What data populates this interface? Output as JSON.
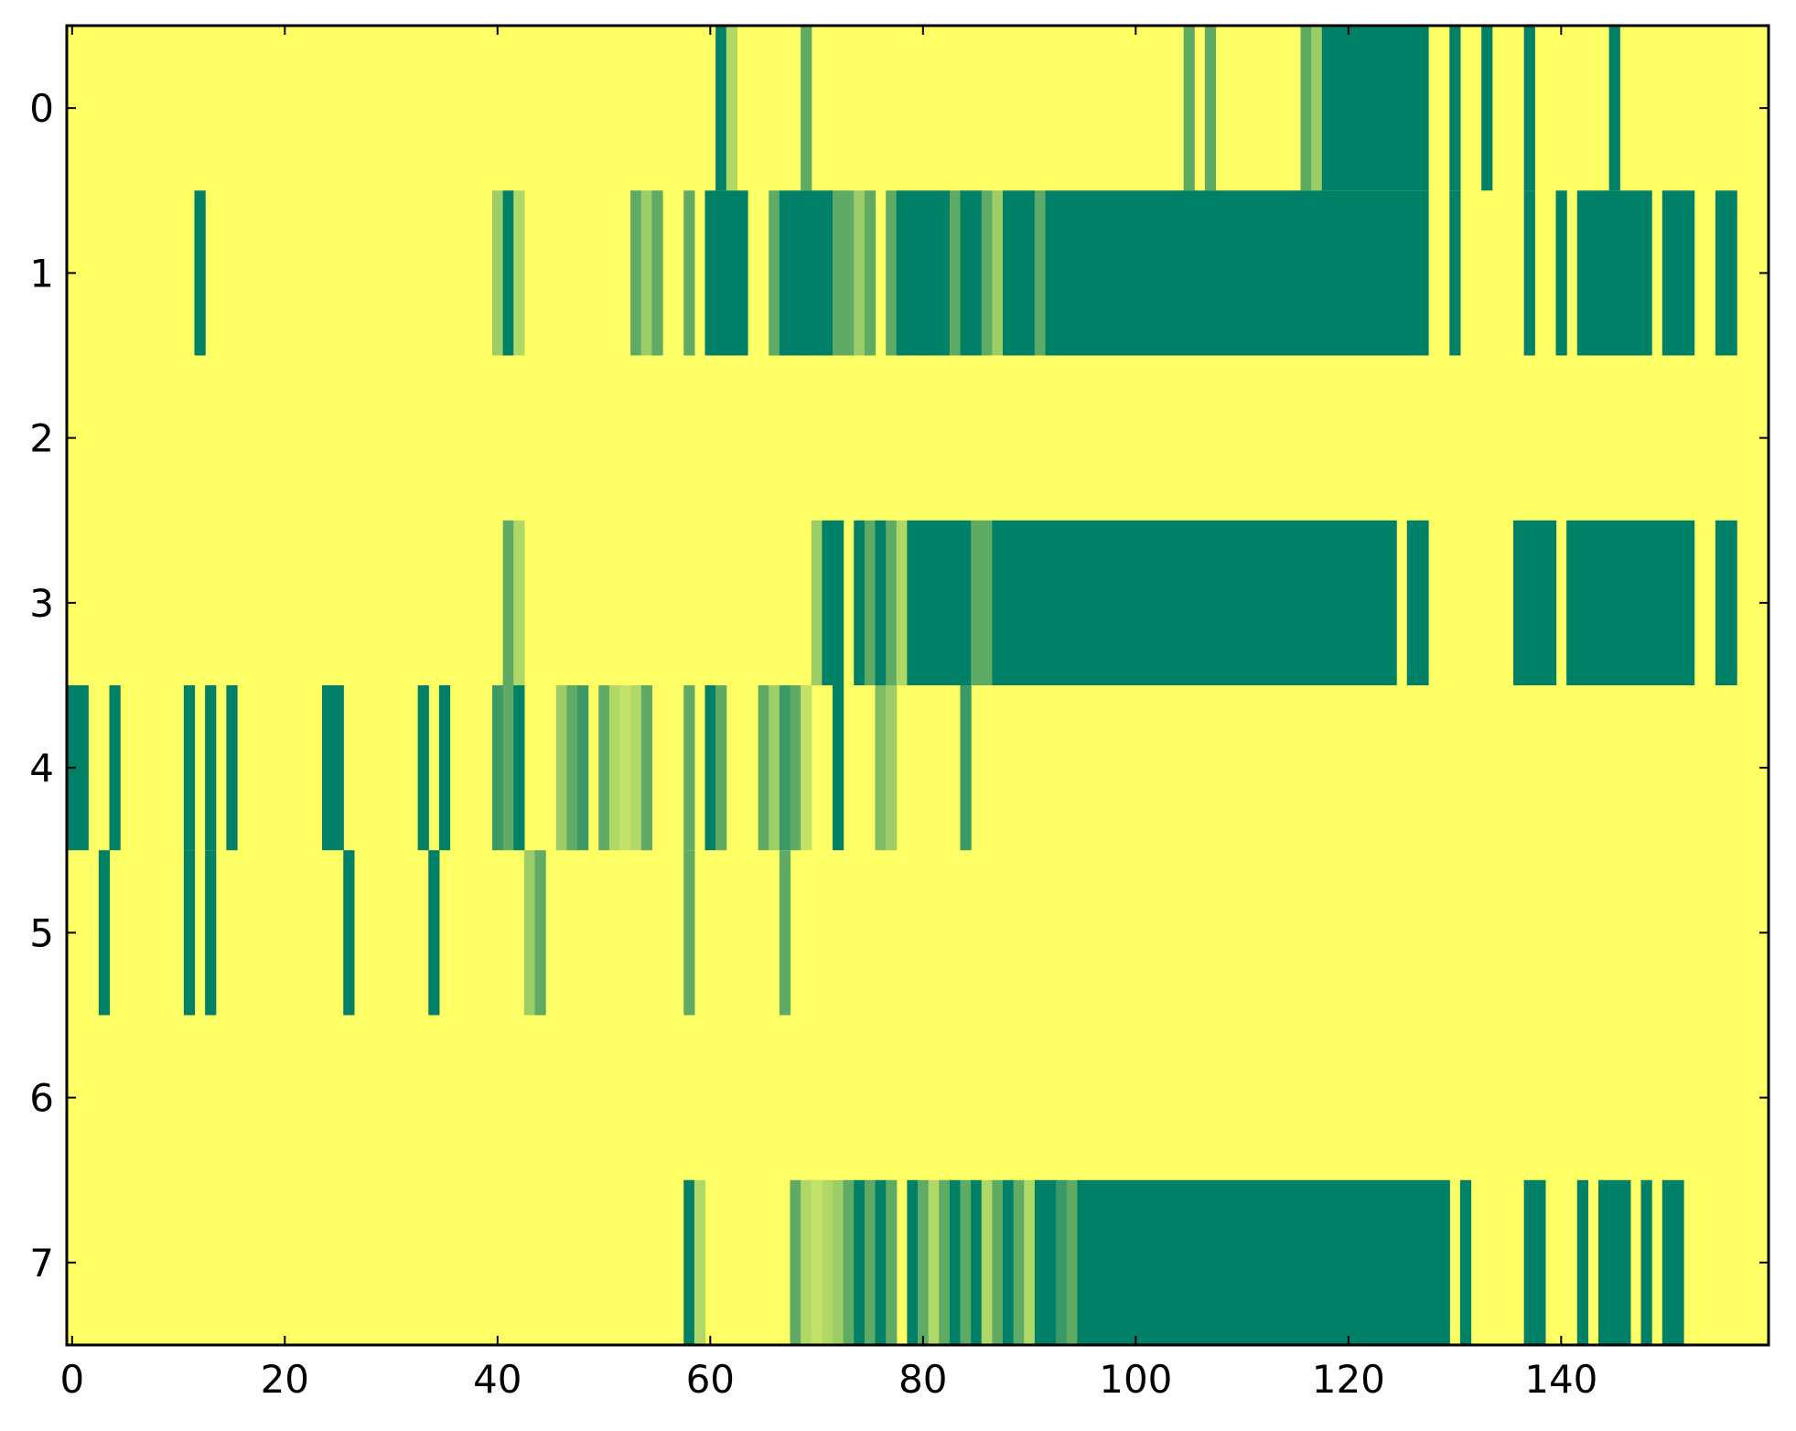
{
  "chart_data": {
    "type": "heatmap",
    "title": "",
    "xlabel": "",
    "ylabel": "",
    "xlim": [
      -0.5,
      159.5
    ],
    "ylim": [
      7.5,
      -0.5
    ],
    "x_ticks": [
      "0",
      "20",
      "40",
      "60",
      "80",
      "100",
      "120",
      "140"
    ],
    "y_ticks": [
      "0",
      "1",
      "2",
      "3",
      "4",
      "5",
      "6",
      "7"
    ],
    "colormap": "summer_r",
    "colormap_colors": [
      "#ffff66",
      "#c4e266",
      "#9ccd66",
      "#5fab66",
      "#3a9966",
      "#008066"
    ],
    "value_range": [
      0,
      1
    ],
    "background_value": 0,
    "rows": [
      {
        "row": 0,
        "cells": [
          [
            61,
            1
          ],
          [
            62,
            0.3
          ],
          [
            69,
            0.6
          ],
          [
            105,
            0.6
          ],
          [
            107,
            0.6
          ],
          [
            116,
            0.6
          ],
          [
            117,
            0.4
          ],
          [
            118,
            1
          ],
          [
            119,
            1
          ],
          [
            120,
            1
          ],
          [
            121,
            1
          ],
          [
            122,
            1
          ],
          [
            123,
            1
          ],
          [
            124,
            1
          ],
          [
            125,
            1
          ],
          [
            126,
            1
          ],
          [
            127,
            1
          ],
          [
            130,
            1
          ],
          [
            133,
            1
          ],
          [
            137,
            1
          ],
          [
            145,
            1
          ]
        ]
      },
      {
        "row": 1,
        "cells": [
          [
            12,
            1
          ],
          [
            40,
            0.4
          ],
          [
            41,
            1
          ],
          [
            42,
            0.3
          ],
          [
            53,
            0.6
          ],
          [
            54,
            0.4
          ],
          [
            55,
            0.6
          ],
          [
            58,
            0.6
          ],
          [
            60,
            1
          ],
          [
            61,
            1
          ],
          [
            62,
            1
          ],
          [
            63,
            1
          ],
          [
            66,
            0.6
          ],
          [
            67,
            1
          ],
          [
            68,
            1
          ],
          [
            69,
            1
          ],
          [
            70,
            1
          ],
          [
            71,
            1
          ],
          [
            72,
            0.6
          ],
          [
            73,
            0.6
          ],
          [
            74,
            0.4
          ],
          [
            75,
            0.6
          ],
          [
            77,
            0.6
          ],
          [
            78,
            1
          ],
          [
            79,
            1
          ],
          [
            80,
            1
          ],
          [
            81,
            1
          ],
          [
            82,
            1
          ],
          [
            83,
            0.6
          ],
          [
            84,
            1
          ],
          [
            85,
            1
          ],
          [
            86,
            0.6
          ],
          [
            87,
            0.4
          ],
          [
            88,
            1
          ],
          [
            89,
            1
          ],
          [
            90,
            1
          ],
          [
            91,
            0.6
          ],
          [
            92,
            1
          ],
          [
            93,
            1
          ],
          [
            94,
            1
          ],
          [
            95,
            1
          ],
          [
            96,
            1
          ],
          [
            97,
            1
          ],
          [
            98,
            1
          ],
          [
            99,
            1
          ],
          [
            100,
            1
          ],
          [
            101,
            1
          ],
          [
            102,
            1
          ],
          [
            103,
            1
          ],
          [
            104,
            1
          ],
          [
            105,
            1
          ],
          [
            106,
            1
          ],
          [
            107,
            1
          ],
          [
            108,
            1
          ],
          [
            109,
            1
          ],
          [
            110,
            1
          ],
          [
            111,
            1
          ],
          [
            112,
            1
          ],
          [
            113,
            1
          ],
          [
            114,
            1
          ],
          [
            115,
            1
          ],
          [
            116,
            1
          ],
          [
            117,
            1
          ],
          [
            118,
            1
          ],
          [
            119,
            1
          ],
          [
            120,
            1
          ],
          [
            121,
            1
          ],
          [
            122,
            1
          ],
          [
            123,
            1
          ],
          [
            124,
            1
          ],
          [
            125,
            1
          ],
          [
            126,
            1
          ],
          [
            127,
            1
          ],
          [
            130,
            1
          ],
          [
            137,
            1
          ],
          [
            140,
            1
          ],
          [
            142,
            1
          ],
          [
            143,
            1
          ],
          [
            144,
            1
          ],
          [
            145,
            1
          ],
          [
            146,
            1
          ],
          [
            147,
            1
          ],
          [
            148,
            1
          ],
          [
            150,
            1
          ],
          [
            151,
            1
          ],
          [
            152,
            1
          ],
          [
            155,
            1
          ],
          [
            156,
            1
          ]
        ]
      },
      {
        "row": 2,
        "cells": []
      },
      {
        "row": 3,
        "cells": [
          [
            41,
            0.6
          ],
          [
            42,
            0.3
          ],
          [
            70,
            0.4
          ],
          [
            71,
            1
          ],
          [
            72,
            1
          ],
          [
            74,
            1
          ],
          [
            75,
            0.6
          ],
          [
            76,
            1
          ],
          [
            77,
            0.6
          ],
          [
            78,
            0.3
          ],
          [
            79,
            1
          ],
          [
            80,
            1
          ],
          [
            81,
            1
          ],
          [
            82,
            1
          ],
          [
            83,
            1
          ],
          [
            84,
            1
          ],
          [
            85,
            0.6
          ],
          [
            86,
            0.6
          ],
          [
            87,
            1
          ],
          [
            88,
            1
          ],
          [
            89,
            1
          ],
          [
            90,
            1
          ],
          [
            91,
            1
          ],
          [
            92,
            1
          ],
          [
            93,
            1
          ],
          [
            94,
            1
          ],
          [
            95,
            1
          ],
          [
            96,
            1
          ],
          [
            97,
            1
          ],
          [
            98,
            1
          ],
          [
            99,
            1
          ],
          [
            100,
            1
          ],
          [
            101,
            1
          ],
          [
            102,
            1
          ],
          [
            103,
            1
          ],
          [
            104,
            1
          ],
          [
            105,
            1
          ],
          [
            106,
            1
          ],
          [
            107,
            1
          ],
          [
            108,
            1
          ],
          [
            109,
            1
          ],
          [
            110,
            1
          ],
          [
            111,
            1
          ],
          [
            112,
            1
          ],
          [
            113,
            1
          ],
          [
            114,
            1
          ],
          [
            115,
            1
          ],
          [
            116,
            1
          ],
          [
            117,
            1
          ],
          [
            118,
            1
          ],
          [
            119,
            1
          ],
          [
            120,
            1
          ],
          [
            121,
            1
          ],
          [
            122,
            1
          ],
          [
            123,
            1
          ],
          [
            124,
            1
          ],
          [
            126,
            1
          ],
          [
            127,
            1
          ],
          [
            136,
            1
          ],
          [
            137,
            1
          ],
          [
            138,
            1
          ],
          [
            139,
            1
          ],
          [
            141,
            1
          ],
          [
            142,
            1
          ],
          [
            143,
            1
          ],
          [
            144,
            1
          ],
          [
            145,
            1
          ],
          [
            146,
            1
          ],
          [
            147,
            1
          ],
          [
            148,
            1
          ],
          [
            149,
            1
          ],
          [
            150,
            1
          ],
          [
            151,
            1
          ],
          [
            152,
            1
          ],
          [
            155,
            1
          ],
          [
            156,
            1
          ]
        ]
      },
      {
        "row": 4,
        "cells": [
          [
            0,
            1
          ],
          [
            1,
            1
          ],
          [
            4,
            1
          ],
          [
            11,
            1
          ],
          [
            13,
            1
          ],
          [
            15,
            1
          ],
          [
            24,
            1
          ],
          [
            25,
            1
          ],
          [
            33,
            1
          ],
          [
            35,
            1
          ],
          [
            40,
            0.8
          ],
          [
            41,
            0.6
          ],
          [
            42,
            1
          ],
          [
            46,
            0.4
          ],
          [
            47,
            0.6
          ],
          [
            48,
            0.8
          ],
          [
            50,
            0.6
          ],
          [
            51,
            0.3
          ],
          [
            52,
            0.2
          ],
          [
            53,
            0.3
          ],
          [
            54,
            0.6
          ],
          [
            58,
            0.6
          ],
          [
            60,
            1
          ],
          [
            61,
            0.6
          ],
          [
            65,
            0.6
          ],
          [
            66,
            0.4
          ],
          [
            67,
            0.8
          ],
          [
            68,
            0.6
          ],
          [
            69,
            0.2
          ],
          [
            72,
            1
          ],
          [
            76,
            0.5
          ],
          [
            77,
            0.4
          ],
          [
            84,
            0.8
          ]
        ]
      },
      {
        "row": 5,
        "cells": [
          [
            3,
            1
          ],
          [
            11,
            1
          ],
          [
            13,
            1
          ],
          [
            26,
            1
          ],
          [
            34,
            1
          ],
          [
            43,
            0.4
          ],
          [
            44,
            0.6
          ],
          [
            58,
            0.6
          ],
          [
            67,
            0.6
          ]
        ]
      },
      {
        "row": 6,
        "cells": []
      },
      {
        "row": 7,
        "cells": [
          [
            58,
            1
          ],
          [
            59,
            0.3
          ],
          [
            68,
            0.6
          ],
          [
            69,
            0.3
          ],
          [
            70,
            0.2
          ],
          [
            71,
            0.3
          ],
          [
            72,
            0.4
          ],
          [
            73,
            0.6
          ],
          [
            74,
            1
          ],
          [
            75,
            0.6
          ],
          [
            76,
            1
          ],
          [
            77,
            0.6
          ],
          [
            79,
            1
          ],
          [
            80,
            0.6
          ],
          [
            81,
            0.3
          ],
          [
            82,
            0.6
          ],
          [
            83,
            1
          ],
          [
            84,
            0.6
          ],
          [
            85,
            1
          ],
          [
            86,
            0.3
          ],
          [
            87,
            0.6
          ],
          [
            88,
            1
          ],
          [
            89,
            0.6
          ],
          [
            90,
            0.3
          ],
          [
            91,
            1
          ],
          [
            92,
            1
          ],
          [
            93,
            0.8
          ],
          [
            94,
            0.6
          ],
          [
            95,
            1
          ],
          [
            96,
            1
          ],
          [
            97,
            1
          ],
          [
            98,
            1
          ],
          [
            99,
            1
          ],
          [
            100,
            1
          ],
          [
            101,
            1
          ],
          [
            102,
            1
          ],
          [
            103,
            1
          ],
          [
            104,
            1
          ],
          [
            105,
            1
          ],
          [
            106,
            1
          ],
          [
            107,
            1
          ],
          [
            108,
            1
          ],
          [
            109,
            1
          ],
          [
            110,
            1
          ],
          [
            111,
            1
          ],
          [
            112,
            1
          ],
          [
            113,
            1
          ],
          [
            114,
            1
          ],
          [
            115,
            1
          ],
          [
            116,
            1
          ],
          [
            117,
            1
          ],
          [
            118,
            1
          ],
          [
            119,
            1
          ],
          [
            120,
            1
          ],
          [
            121,
            1
          ],
          [
            122,
            1
          ],
          [
            123,
            1
          ],
          [
            124,
            1
          ],
          [
            125,
            1
          ],
          [
            126,
            1
          ],
          [
            127,
            1
          ],
          [
            128,
            1
          ],
          [
            129,
            1
          ],
          [
            131,
            1
          ],
          [
            137,
            1
          ],
          [
            138,
            1
          ],
          [
            142,
            1
          ],
          [
            144,
            1
          ],
          [
            145,
            1
          ],
          [
            146,
            1
          ],
          [
            148,
            1
          ],
          [
            150,
            1
          ],
          [
            151,
            1
          ]
        ]
      }
    ]
  }
}
